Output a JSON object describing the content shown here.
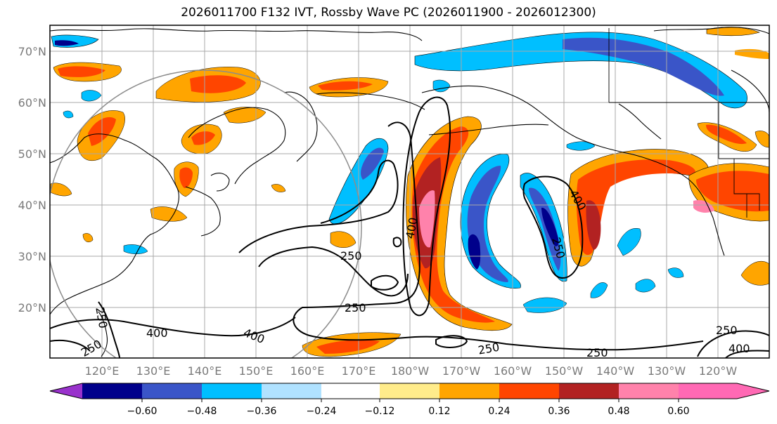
{
  "title": "2026011700 F132 IVT, Rossby Wave PC (2026011900 - 2026012300)",
  "map": {
    "lat_labels": [
      "70°N",
      "60°N",
      "50°N",
      "40°N",
      "30°N",
      "20°N"
    ],
    "lon_labels": [
      "120°E",
      "130°E",
      "140°E",
      "150°E",
      "160°E",
      "170°E",
      "180°W",
      "170°W",
      "160°W",
      "150°W",
      "140°W",
      "130°W",
      "120°W"
    ],
    "contour_labels": [
      {
        "id": "c400a",
        "text": "400"
      },
      {
        "id": "c400b",
        "text": "400"
      },
      {
        "id": "c250a",
        "text": "250"
      },
      {
        "id": "c250b",
        "text": "250"
      },
      {
        "id": "c250c",
        "text": "250"
      },
      {
        "id": "c400c",
        "text": "400"
      },
      {
        "id": "c400d",
        "text": "400"
      },
      {
        "id": "c250d",
        "text": "250"
      },
      {
        "id": "c250e",
        "text": "250"
      },
      {
        "id": "c250f",
        "text": "250"
      },
      {
        "id": "c250g",
        "text": "250"
      },
      {
        "id": "c400e",
        "text": "400"
      },
      {
        "id": "c250h",
        "text": "250"
      },
      {
        "id": "c250i",
        "text": "250"
      }
    ],
    "colors": {
      "land_outline": "#000000",
      "grid": "#a8a8a8",
      "circle": "#8c8c8c"
    }
  },
  "colorbar": {
    "ticks": [
      "−0.60",
      "−0.48",
      "−0.36",
      "−0.24",
      "−0.12",
      "0.12",
      "0.24",
      "0.36",
      "0.48",
      "0.60"
    ],
    "colors": {
      "under": "#9932cc",
      "c1": "#00008b",
      "c2": "#3a55c8",
      "c3": "#00bfff",
      "c4": "#b0e2ff",
      "c5": "#ffffff",
      "c6": "#ffec8b",
      "c7": "#ffa500",
      "c8": "#ff4500",
      "c9": "#b22222",
      "c10": "#ff82ab",
      "over": "#ff69b4"
    }
  }
}
